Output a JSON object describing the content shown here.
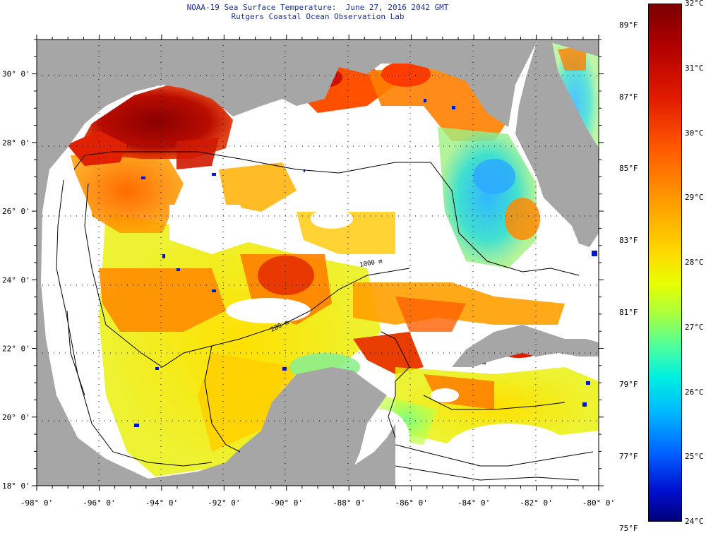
{
  "title": {
    "line1": "NOAA-19 Sea Surface Temperature:  June 27, 2016 2042 GMT",
    "line2": "Rutgers Coastal Ocean Observation Lab"
  },
  "map": {
    "x_ticks": [
      "-98° 0'",
      "-96° 0'",
      "-94° 0'",
      "-92° 0'",
      "-90° 0'",
      "-88° 0'",
      "-86° 0'",
      "-84° 0'",
      "-82° 0'",
      "-80° 0'"
    ],
    "y_ticks": [
      "30° 0'",
      "28° 0'",
      "26° 0'",
      "24° 0'",
      "22° 0'",
      "20° 0'",
      "18° 0'"
    ],
    "x_range": [
      -98,
      -80
    ],
    "y_range": [
      18,
      31
    ],
    "land_color": "#a6a6a6",
    "cloud_color": "#ffffff",
    "isobath_labels": [
      "200 m",
      "1000 m"
    ]
  },
  "colorbar": {
    "fahrenheit": [
      "89°F",
      "87°F",
      "85°F",
      "83°F",
      "81°F",
      "79°F",
      "77°F",
      "75°F"
    ],
    "celsius": [
      "32°C",
      "31°C",
      "30°C",
      "29°C",
      "28°C",
      "27°C",
      "26°C",
      "25°C",
      "24°C"
    ],
    "colors": [
      "#7a0000",
      "#e01a00",
      "#ff9a00",
      "#e8ff00",
      "#50ff9a",
      "#00f0e0",
      "#0060ff",
      "#00007a"
    ]
  }
}
